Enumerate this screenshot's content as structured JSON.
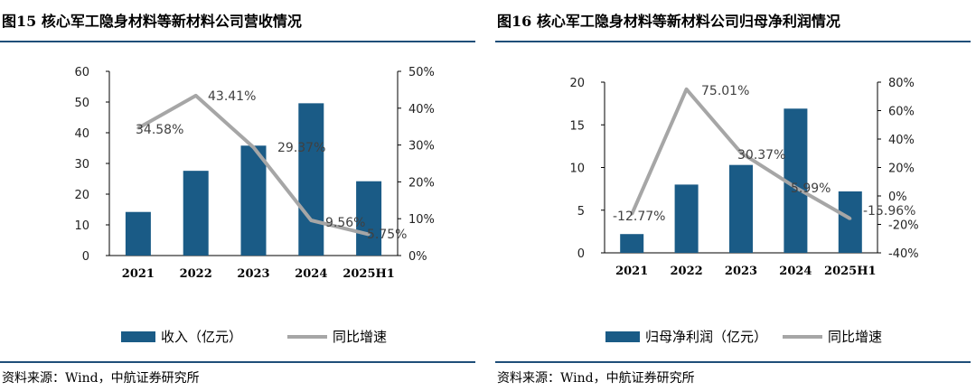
{
  "figures": [
    {
      "title": "图15  核心军工隐身材料等新材料公司营收情况",
      "source": "资料来源：Wind，中航证券研究所"
    },
    {
      "title": "图16  核心军工隐身材料等新材料公司归母净利润情况",
      "source": "资料来源：Wind，中航证券研究所"
    }
  ],
  "colors": {
    "bar": "#1a5b86",
    "line": "#a6a6a6",
    "rule": "#1f4e79"
  },
  "chart_data": [
    {
      "type": "bar",
      "categories": [
        "2021",
        "2022",
        "2023",
        "2024",
        "2025H1"
      ],
      "series": [
        {
          "name": "收入（亿元）",
          "type": "bar",
          "axis": "left",
          "values": [
            14.2,
            27.6,
            35.8,
            49.6,
            24.2
          ]
        },
        {
          "name": "同比增速",
          "type": "line",
          "axis": "right",
          "values": [
            34.58,
            43.41,
            29.37,
            9.56,
            5.75
          ],
          "labels": [
            "34.58%",
            "43.41%",
            "29.37%",
            "9.56%",
            "5.75%"
          ]
        }
      ],
      "yleft": {
        "min": 0,
        "max": 60,
        "ticks": [
          "0",
          "10",
          "20",
          "30",
          "40",
          "50",
          "60"
        ]
      },
      "yright": {
        "min": 0,
        "max": 50,
        "ticks": [
          "0%",
          "10%",
          "20%",
          "30%",
          "40%",
          "50%"
        ]
      },
      "legend": "bottom",
      "grid": false
    },
    {
      "type": "bar",
      "categories": [
        "2021",
        "2022",
        "2023",
        "2024",
        "2025H1"
      ],
      "series": [
        {
          "name": "归母净利润（亿元）",
          "type": "bar",
          "axis": "left",
          "values": [
            2.2,
            8.0,
            10.3,
            16.9,
            7.2
          ]
        },
        {
          "name": "同比增速",
          "type": "line",
          "axis": "right",
          "values": [
            -12.77,
            75.01,
            30.37,
            5.99,
            -15.96
          ],
          "labels": [
            "-12.77%",
            "75.01%",
            "30.37%",
            "5.99%",
            "-15.96%"
          ]
        }
      ],
      "yleft": {
        "min": 0,
        "max": 20,
        "ticks": [
          "0",
          "5",
          "10",
          "15",
          "20"
        ]
      },
      "yright": {
        "min": -40,
        "max": 80,
        "ticks": [
          "-40%",
          "-20%",
          "0%",
          "20%",
          "40%",
          "60%",
          "80%"
        ]
      },
      "legend": "bottom",
      "grid": false
    }
  ]
}
